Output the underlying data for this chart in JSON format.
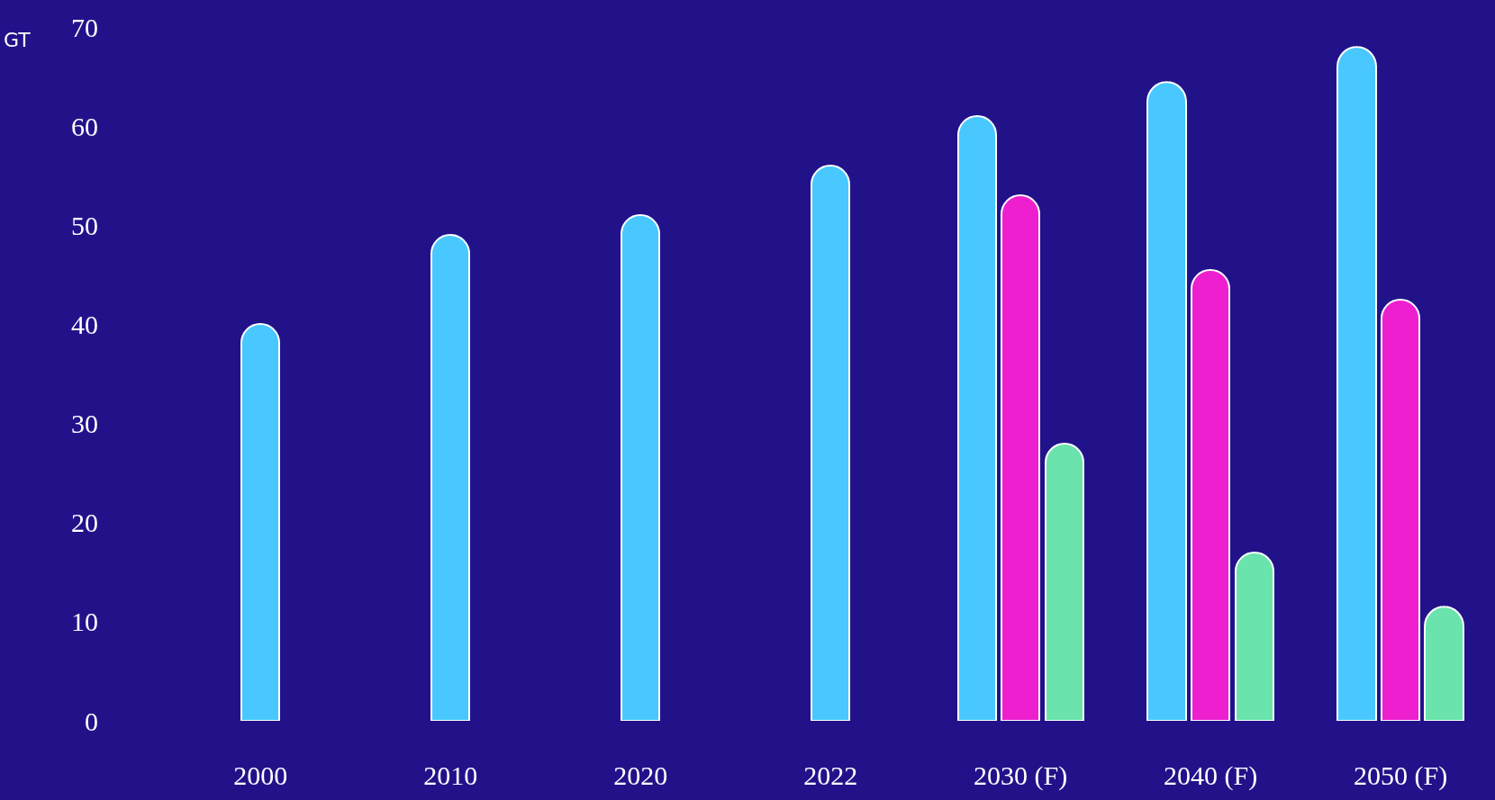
{
  "chart_data": {
    "type": "bar",
    "ylabel": "GT",
    "categories": [
      "2000",
      "2010",
      "2020",
      "2022",
      "2030 (F)",
      "2040 (F)",
      "2050 (F)"
    ],
    "series": [
      {
        "color": "#48c8ff",
        "values": [
          40,
          49,
          51,
          56,
          61,
          64.5,
          68
        ]
      },
      {
        "color": "#ee1fcf",
        "values": [
          null,
          null,
          null,
          null,
          53,
          45.5,
          42.5
        ]
      },
      {
        "color": "#6ae3ad",
        "values": [
          null,
          null,
          null,
          null,
          28,
          17,
          11.5
        ]
      }
    ],
    "ylim": [
      0,
      70
    ],
    "yticks": [
      0,
      10,
      20,
      30,
      40,
      50,
      60,
      70
    ],
    "grid": false
  }
}
